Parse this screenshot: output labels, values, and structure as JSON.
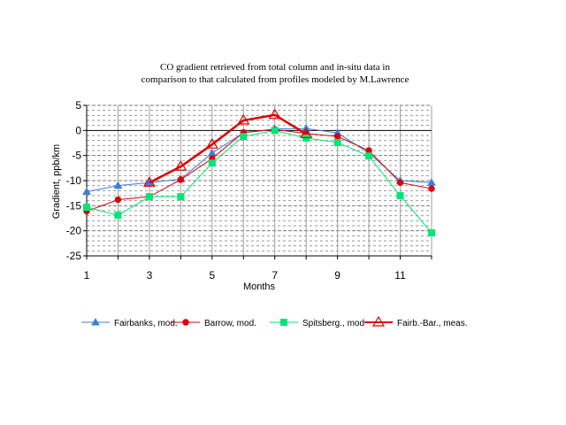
{
  "chart_data": {
    "type": "line",
    "title_lines": [
      "CO gradient retrieved from  total column and in-situ data  in",
      "comparison  to that calculated from profiles modeled by M.Lawrence"
    ],
    "xlabel": "Months",
    "ylabel": "Gradient, ppb/km",
    "xlim": [
      1,
      12
    ],
    "ylim": [
      -25,
      5
    ],
    "x_ticks": [
      1,
      3,
      5,
      7,
      9,
      11
    ],
    "y_ticks": [
      5,
      0,
      -5,
      -10,
      -15,
      -20,
      -25
    ],
    "grid": "horizontal dashed",
    "legend_position": "bottom",
    "series": [
      {
        "name": "Fairbanks, mod.",
        "color": "#3a7fdc",
        "marker": "triangle-filled",
        "x": [
          1,
          2,
          3,
          4,
          5,
          6,
          7,
          8,
          9,
          10,
          11,
          12
        ],
        "values": [
          -12.2,
          -11.0,
          -10.4,
          -9.7,
          -4.5,
          -0.5,
          0.3,
          0.4,
          -0.5,
          -4.5,
          -10.0,
          -10.4
        ]
      },
      {
        "name": "Barrow, mod.",
        "color": "#dd0000",
        "marker": "circle-filled",
        "x": [
          1,
          2,
          3,
          4,
          5,
          6,
          7,
          8,
          9,
          10,
          11,
          12
        ],
        "values": [
          -16.1,
          -13.8,
          -13.2,
          -9.8,
          -5.6,
          -0.4,
          0.2,
          -0.6,
          -1.2,
          -4.0,
          -10.4,
          -11.6
        ]
      },
      {
        "name": "Spitsberg., mod",
        "color": "#00e676",
        "marker": "square-filled",
        "x": [
          1,
          2,
          3,
          4,
          5,
          6,
          7,
          8,
          9,
          10,
          11,
          12
        ],
        "values": [
          -15.3,
          -16.9,
          -13.2,
          -13.2,
          -6.5,
          -1.2,
          0.0,
          -1.5,
          -2.4,
          -5.1,
          -13.0,
          -20.4
        ]
      },
      {
        "name": "Fairb.-Bar., meas.",
        "color": "#dd0000",
        "marker": "triangle-open",
        "bold": true,
        "x": [
          3,
          4,
          5,
          6,
          7,
          8
        ],
        "values": [
          -10.4,
          -7.2,
          -2.8,
          2.0,
          3.1,
          -0.7
        ]
      }
    ]
  }
}
